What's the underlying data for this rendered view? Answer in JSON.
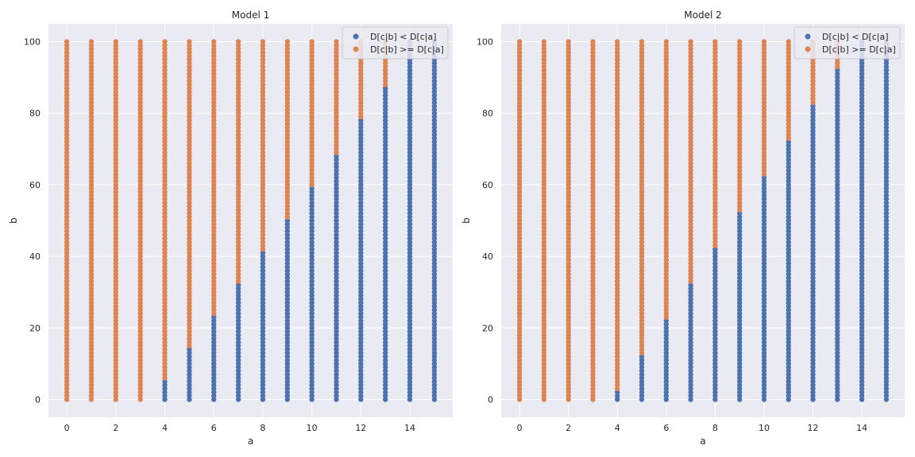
{
  "chart_data": [
    {
      "type": "scatter",
      "title": "Model 1",
      "xlabel": "a",
      "ylabel": "b",
      "xlim": [
        -0.75,
        15.75
      ],
      "ylim": [
        -5,
        105
      ],
      "xticks": [
        0,
        2,
        4,
        6,
        8,
        10,
        12,
        14
      ],
      "yticks": [
        0,
        20,
        40,
        60,
        80,
        100
      ],
      "grid": true,
      "legend_position": "top-right",
      "a_values": [
        0,
        1,
        2,
        3,
        4,
        5,
        6,
        7,
        8,
        9,
        10,
        11,
        12,
        13,
        14,
        15
      ],
      "b_range": [
        0,
        100
      ],
      "threshold_by_a": [
        0,
        0,
        0,
        0,
        6,
        15,
        24,
        33,
        42,
        51,
        60,
        69,
        79,
        88,
        101,
        101
      ],
      "series": [
        {
          "name": "D[c|b] < D[c|a]",
          "color": "#4c72b0",
          "rule": "b < threshold_by_a[a]"
        },
        {
          "name": "D[c|b] >= D[c|a]",
          "color": "#dd8452",
          "rule": "b >= threshold_by_a[a]"
        }
      ]
    },
    {
      "type": "scatter",
      "title": "Model 2",
      "xlabel": "a",
      "ylabel": "b",
      "xlim": [
        -0.75,
        15.75
      ],
      "ylim": [
        -5,
        105
      ],
      "xticks": [
        0,
        2,
        4,
        6,
        8,
        10,
        12,
        14
      ],
      "yticks": [
        0,
        20,
        40,
        60,
        80,
        100
      ],
      "grid": true,
      "legend_position": "top-right",
      "a_values": [
        0,
        1,
        2,
        3,
        4,
        5,
        6,
        7,
        8,
        9,
        10,
        11,
        12,
        13,
        14,
        15
      ],
      "b_range": [
        0,
        100
      ],
      "threshold_by_a": [
        0,
        0,
        0,
        0,
        3,
        13,
        23,
        33,
        43,
        53,
        63,
        73,
        83,
        93,
        101,
        101
      ],
      "series": [
        {
          "name": "D[c|b] < D[c|a]",
          "color": "#4c72b0",
          "rule": "b < threshold_by_a[a]"
        },
        {
          "name": "D[c|b] >= D[c|a]",
          "color": "#dd8452",
          "rule": "b >= threshold_by_a[a]"
        }
      ]
    }
  ]
}
